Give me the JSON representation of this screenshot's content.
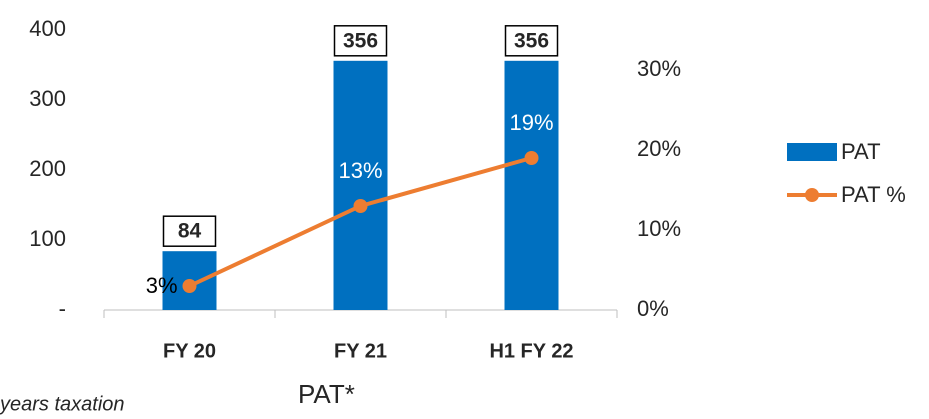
{
  "chart_data": {
    "type": "bar",
    "categories": [
      "FY 20",
      "FY 21",
      "H1 FY 22"
    ],
    "series": [
      {
        "name": "PAT",
        "color": "#0070c0",
        "values": [
          84,
          356,
          356
        ]
      },
      {
        "name": "PAT %",
        "color": "#ed7d31",
        "axis": "y2",
        "type": "line",
        "values": [
          3,
          13,
          19
        ],
        "value_labels": [
          "3%",
          "13%",
          "19%"
        ]
      }
    ],
    "ylim": [
      0,
      400
    ],
    "yticks": [
      {
        "value": 0,
        "label": "-"
      },
      100,
      200,
      300,
      400
    ],
    "y2lim": [
      0,
      35
    ],
    "y2ticks": [
      {
        "value": 0,
        "label": "0%"
      },
      {
        "value": 10,
        "label": "10%"
      },
      {
        "value": 20,
        "label": "20%"
      },
      {
        "value": 30,
        "label": "30%"
      }
    ],
    "legend": "right",
    "annotations": [
      "years taxation",
      "PAT*"
    ]
  }
}
